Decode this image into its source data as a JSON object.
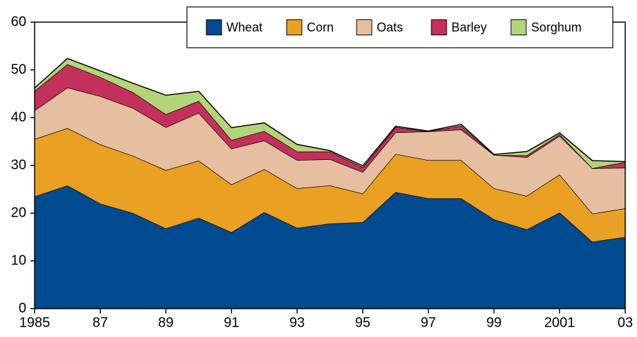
{
  "chart_data": {
    "type": "stacked-area",
    "x": [
      1985,
      1986,
      1987,
      1988,
      1989,
      1990,
      1991,
      1992,
      1993,
      1994,
      1995,
      1996,
      1997,
      1998,
      1999,
      2000,
      2001,
      2002,
      2003
    ],
    "xlim": [
      1985,
      2003
    ],
    "xticks": [
      {
        "value": 1985,
        "label": "1985"
      },
      {
        "value": 1987,
        "label": "87"
      },
      {
        "value": 1989,
        "label": "89"
      },
      {
        "value": 1991,
        "label": "91"
      },
      {
        "value": 1993,
        "label": "93"
      },
      {
        "value": 1995,
        "label": "95"
      },
      {
        "value": 1997,
        "label": "97"
      },
      {
        "value": 1999,
        "label": "99"
      },
      {
        "value": 2001,
        "label": "2001"
      },
      {
        "value": 2003,
        "label": "03"
      }
    ],
    "ylim": [
      0,
      60
    ],
    "yticks": [
      0,
      10,
      20,
      30,
      40,
      50,
      60
    ],
    "legend": "top-right",
    "series": [
      {
        "name": "Wheat",
        "color": "#004a8f",
        "values": [
          23.5,
          25.8,
          22,
          20,
          16.8,
          19,
          16,
          20.2,
          16.9,
          17.8,
          18.1,
          24.4,
          23.1,
          23.1,
          18.7,
          16.6,
          20.1,
          14,
          15
        ]
      },
      {
        "name": "Corn",
        "color": "#e9a023",
        "values": [
          12,
          12,
          12.4,
          12,
          12.2,
          12,
          10,
          9,
          8.3,
          8,
          6,
          8,
          8,
          8,
          6.5,
          7,
          8,
          5.9,
          6
        ]
      },
      {
        "name": "Oats",
        "color": "#e6bfa0",
        "values": [
          6,
          8.5,
          10.1,
          10,
          9,
          10,
          7.5,
          6,
          5.9,
          5.5,
          4.5,
          4.5,
          6,
          6.4,
          7,
          8.1,
          8.1,
          9.5,
          8.5
        ]
      },
      {
        "name": "Barley",
        "color": "#c4305c",
        "values": [
          4.1,
          4.9,
          4,
          3.3,
          2.7,
          2.5,
          1.8,
          2,
          1.8,
          1.6,
          1,
          1.1,
          0,
          0.8,
          0,
          0.4,
          0.3,
          0,
          1.2
        ]
      },
      {
        "name": "Sorghum",
        "color": "#b2d57a",
        "values": [
          0.6,
          1.2,
          1.3,
          1.9,
          4,
          2,
          2.6,
          1.7,
          1.5,
          0.2,
          0.3,
          0.2,
          0.1,
          0.3,
          0.1,
          0.8,
          0.3,
          1.6,
          0.1
        ]
      }
    ]
  }
}
